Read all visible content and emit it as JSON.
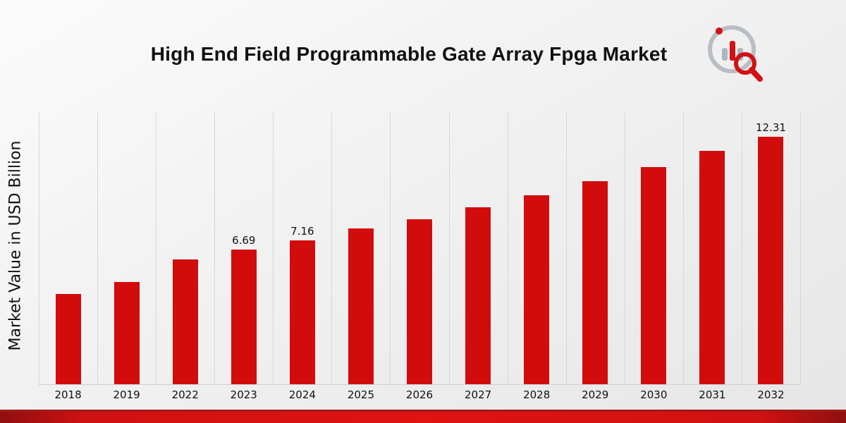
{
  "title": "High End Field Programmable Gate Array Fpga Market",
  "y_axis_label": "Market Value in USD Billion",
  "colors": {
    "bar": "#d20c0c",
    "ribbon_line": "#9e1b1b",
    "ribbon_band": "#d31010",
    "gridline": "#d8d8d8",
    "background": "#efefef"
  },
  "logo": {
    "icon": "bar-chart-magnifier-logo"
  },
  "chart_data": {
    "type": "bar",
    "title": "High End Field Programmable Gate Array Fpga Market",
    "xlabel": "",
    "ylabel": "Market Value in USD Billion",
    "ylim": [
      0,
      13.5
    ],
    "grid": "vertical-only",
    "legend": "none",
    "bar_color": "#d20c0c",
    "categories": [
      "2018",
      "2019",
      "2022",
      "2023",
      "2024",
      "2025",
      "2026",
      "2027",
      "2028",
      "2029",
      "2030",
      "2031",
      "2032"
    ],
    "values": [
      4.5,
      5.1,
      6.2,
      6.69,
      7.16,
      7.75,
      8.2,
      8.8,
      9.4,
      10.1,
      10.8,
      11.6,
      12.31
    ],
    "value_labels": [
      null,
      null,
      null,
      "6.69",
      "7.16",
      null,
      null,
      null,
      null,
      null,
      null,
      null,
      "12.31"
    ]
  }
}
